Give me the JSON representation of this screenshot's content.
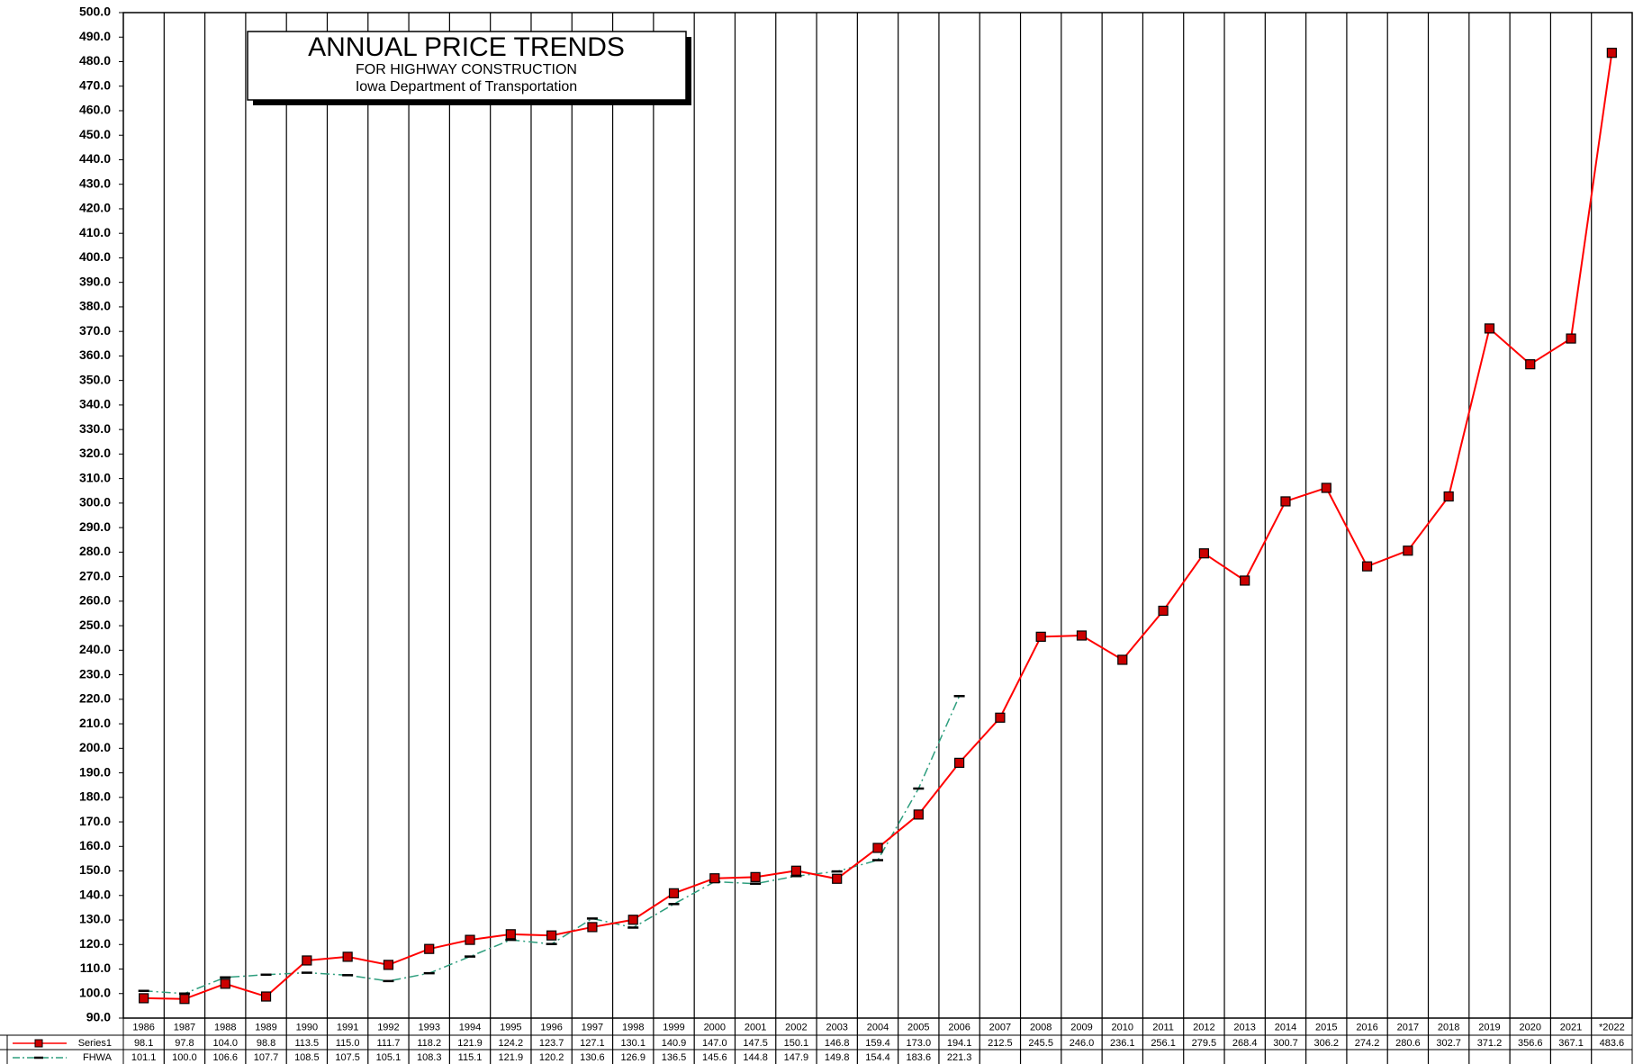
{
  "chart_data": {
    "type": "line",
    "title": "ANNUAL PRICE TRENDS",
    "subtitle": "FOR HIGHWAY CONSTRUCTION",
    "annotations": [
      "Iowa Department of Transportation"
    ],
    "categories": [
      "1986",
      "1987",
      "1988",
      "1989",
      "1990",
      "1991",
      "1992",
      "1993",
      "1994",
      "1995",
      "1996",
      "1997",
      "1998",
      "1999",
      "2000",
      "2001",
      "2002",
      "2003",
      "2004",
      "2005",
      "2006",
      "2007",
      "2008",
      "2009",
      "2010",
      "2011",
      "2012",
      "2013",
      "2014",
      "2015",
      "2016",
      "2017",
      "2018",
      "2019",
      "2020",
      "2021",
      "*2022"
    ],
    "series": [
      {
        "name": "Series1",
        "color": "#ff0000",
        "marker_color": "#cc0000",
        "values": [
          98.1,
          97.8,
          104.0,
          98.8,
          113.5,
          115.0,
          111.7,
          118.2,
          121.9,
          124.2,
          123.7,
          127.1,
          130.1,
          140.9,
          147.0,
          147.5,
          150.1,
          146.8,
          159.4,
          173.0,
          194.1,
          212.5,
          245.5,
          246.0,
          236.1,
          256.1,
          279.5,
          268.4,
          300.7,
          306.2,
          274.2,
          280.6,
          302.7,
          371.2,
          356.6,
          367.1,
          483.6
        ],
        "value_labels": [
          "98.1",
          "97.8",
          "104.0",
          "98.8",
          "113.5",
          "115.0",
          "111.7",
          "118.2",
          "121.9",
          "124.2",
          "123.7",
          "127.1",
          "130.1",
          "140.9",
          "147.0",
          "147.5",
          "150.1",
          "146.8",
          "159.4",
          "173.0",
          "194.1",
          "212.5",
          "245.5",
          "246.0",
          "236.1",
          "256.1",
          "279.5",
          "268.4",
          "300.7",
          "306.2",
          "274.2",
          "280.6",
          "302.7",
          "371.2",
          "356.6",
          "367.1",
          "483.6"
        ]
      },
      {
        "name": "FHWA",
        "color": "#2e9e7e",
        "marker_color": "#000000",
        "values": [
          101.1,
          100.0,
          106.6,
          107.7,
          108.5,
          107.5,
          105.1,
          108.3,
          115.1,
          121.9,
          120.2,
          130.6,
          126.9,
          136.5,
          145.6,
          144.8,
          147.9,
          149.8,
          154.4,
          183.6,
          221.3,
          null,
          null,
          null,
          null,
          null,
          null,
          null,
          null,
          null,
          null,
          null,
          null,
          null,
          null,
          null,
          null
        ],
        "value_labels": [
          "101.1",
          "100.0",
          "106.6",
          "107.7",
          "108.5",
          "107.5",
          "105.1",
          "108.3",
          "115.1",
          "121.9",
          "120.2",
          "130.6",
          "126.9",
          "136.5",
          "145.6",
          "144.8",
          "147.9",
          "149.8",
          "154.4",
          "183.6",
          "221.3",
          null,
          null,
          null,
          null,
          null,
          null,
          null,
          null,
          null,
          null,
          null,
          null,
          null,
          null,
          null,
          null
        ]
      }
    ],
    "ylim": [
      90,
      500
    ],
    "yticks": [
      {
        "value": 90,
        "label": "90.0"
      },
      {
        "value": 100,
        "label": "100.0"
      },
      {
        "value": 110,
        "label": "110.0"
      },
      {
        "value": 120,
        "label": "120.0"
      },
      {
        "value": 130,
        "label": "130.0"
      },
      {
        "value": 140,
        "label": "140.0"
      },
      {
        "value": 150,
        "label": "150.0"
      },
      {
        "value": 160,
        "label": "160.0"
      },
      {
        "value": 170,
        "label": "170.0"
      },
      {
        "value": 180,
        "label": "180.0"
      },
      {
        "value": 190,
        "label": "190.0"
      },
      {
        "value": 200,
        "label": "200.0"
      },
      {
        "value": 210,
        "label": "210.0"
      },
      {
        "value": 220,
        "label": "220.0"
      },
      {
        "value": 230,
        "label": "230.0"
      },
      {
        "value": 240,
        "label": "240.0"
      },
      {
        "value": 250,
        "label": "250.0"
      },
      {
        "value": 260,
        "label": "260.0"
      },
      {
        "value": 270,
        "label": "270.0"
      },
      {
        "value": 280,
        "label": "280.0"
      },
      {
        "value": 290,
        "label": "290.0"
      },
      {
        "value": 300,
        "label": "300.0"
      },
      {
        "value": 310,
        "label": "310.0"
      },
      {
        "value": 320,
        "label": "320.0"
      },
      {
        "value": 330,
        "label": "330.0"
      },
      {
        "value": 340,
        "label": "340.0"
      },
      {
        "value": 350,
        "label": "350.0"
      },
      {
        "value": 360,
        "label": "360.0"
      },
      {
        "value": 370,
        "label": "370.0"
      },
      {
        "value": 380,
        "label": "380.0"
      },
      {
        "value": 390,
        "label": "390.0"
      },
      {
        "value": 400,
        "label": "400.0"
      },
      {
        "value": 410,
        "label": "410.0"
      },
      {
        "value": 420,
        "label": "420.0"
      },
      {
        "value": 430,
        "label": "430.0"
      },
      {
        "value": 440,
        "label": "440.0"
      },
      {
        "value": 450,
        "label": "450.0"
      },
      {
        "value": 460,
        "label": "460.0"
      },
      {
        "value": 470,
        "label": "470.0"
      },
      {
        "value": 480,
        "label": "480.0"
      },
      {
        "value": 490,
        "label": "490.0"
      },
      {
        "value": 500,
        "label": "500.0"
      }
    ],
    "grid": "vertical"
  }
}
